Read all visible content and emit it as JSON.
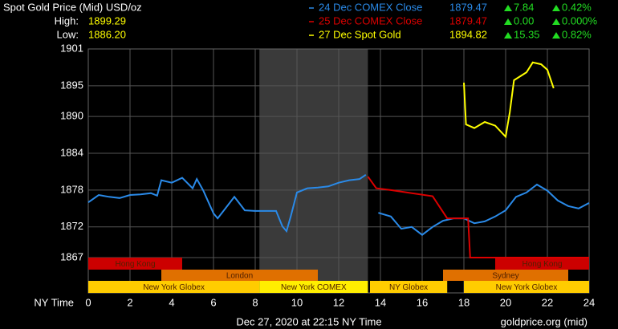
{
  "chart_data": {
    "type": "line",
    "title": "Spot Gold Price (Mid) USD/oz",
    "high_label": "High:",
    "high": "1899.29",
    "low_label": "Low:",
    "low": "1886.20",
    "x_label": "NY Time",
    "footer": "Dec 27, 2020 at 22:15 NY Time",
    "source": "goldprice.org (mid)",
    "xlim": [
      0,
      24
    ],
    "xticks": [
      0,
      2,
      4,
      6,
      8,
      10,
      12,
      14,
      16,
      18,
      20,
      22,
      24
    ],
    "ylim": [
      1867,
      1901
    ],
    "yticks": [
      1867,
      1872,
      1878,
      1884,
      1890,
      1895,
      1901
    ],
    "grid": true,
    "series": [
      {
        "name": "24 Dec COMEX Close",
        "color": "#2a8ae8",
        "price": "1879.47",
        "change": "7.84",
        "change_pct": "0.42%",
        "x": [
          0,
          0.5,
          1,
          1.5,
          2,
          2.5,
          3,
          3.3,
          3.5,
          4,
          4.5,
          5,
          5.2,
          5.5,
          6,
          6.2,
          6.5,
          7,
          7.5,
          8,
          8.5,
          9,
          9.3,
          9.5,
          9.7,
          10,
          10.5,
          11,
          11.5,
          12,
          12.5,
          13,
          13.3,
          13.5,
          13.9,
          14.5,
          15,
          15.5,
          16,
          16.5,
          17,
          17.5,
          18,
          18.5,
          19,
          19.5,
          20,
          20.5,
          21,
          21.5,
          22,
          22.5,
          23,
          23.5,
          24
        ],
        "values": [
          1876.0,
          1877.2,
          1876.9,
          1876.7,
          1877.2,
          1877.3,
          1877.5,
          1877.1,
          1879.6,
          1879.2,
          1880.0,
          1878.3,
          1879.8,
          1878.0,
          1874.2,
          1873.4,
          1874.7,
          1876.9,
          1874.7,
          1874.6,
          1874.6,
          1874.6,
          1872.1,
          1871.3,
          1873.7,
          1877.6,
          1878.3,
          1878.4,
          1878.6,
          1879.2,
          1879.6,
          1879.8,
          1880.5,
          null,
          1874.3,
          1873.7,
          1871.7,
          1872.0,
          1870.7,
          1872.0,
          1873.0,
          1873.4,
          1873.4,
          1872.6,
          1872.9,
          1873.7,
          1874.7,
          1876.9,
          1877.6,
          1878.9,
          1877.9,
          1876.3,
          1875.4,
          1875.0,
          1875.9
        ]
      },
      {
        "name": "25 Dec COMEX Close",
        "color": "#dd0000",
        "price": "1879.47",
        "change": "0.00",
        "change_pct": "0.000%",
        "x": [
          13.4,
          13.8,
          14.5,
          16.5,
          17.2,
          18.2,
          18.3,
          24
        ],
        "values": [
          1880.2,
          1878.3,
          1878.0,
          1877.0,
          1873.4,
          1873.4,
          1867.0,
          1867.0
        ]
      },
      {
        "name": "27 Dec Spot Gold",
        "color": "#ffff00",
        "price": "1894.82",
        "change": "15.35",
        "change_pct": "0.82%",
        "x": [
          18,
          18.1,
          18.5,
          19,
          19.5,
          20,
          20.2,
          20.4,
          21,
          21.3,
          21.7,
          22,
          22.3
        ],
        "values": [
          1895.5,
          1888.7,
          1888.1,
          1889.1,
          1888.5,
          1886.7,
          1890.7,
          1895.9,
          1897.2,
          1898.8,
          1898.5,
          1897.6,
          1894.6
        ]
      }
    ],
    "sessions": [
      {
        "name": "Hong Kong",
        "start": 0,
        "end": 4.5,
        "row": 0,
        "color": "#cc0000"
      },
      {
        "name": "Hong Kong",
        "start": 19.5,
        "end": 24,
        "row": 0,
        "color": "#cc0000"
      },
      {
        "name": "London",
        "start": 3.5,
        "end": 11,
        "row": 1,
        "color": "#e07000"
      },
      {
        "name": "Sydney",
        "start": 17,
        "end": 23,
        "row": 1,
        "color": "#e07000"
      },
      {
        "name": "New York Globex",
        "start": 0,
        "end": 8.2,
        "row": 2,
        "color": "#ffcc00"
      },
      {
        "name": "New York COMEX",
        "start": 8.2,
        "end": 13.4,
        "row": 2,
        "color": "#ffee00",
        "highlight": true
      },
      {
        "name": "NY Globex",
        "start": 13.5,
        "end": 17.2,
        "row": 2,
        "color": "#ffcc00"
      },
      {
        "name": "New York Globex",
        "start": 18,
        "end": 24,
        "row": 2,
        "color": "#ffcc00"
      }
    ]
  }
}
